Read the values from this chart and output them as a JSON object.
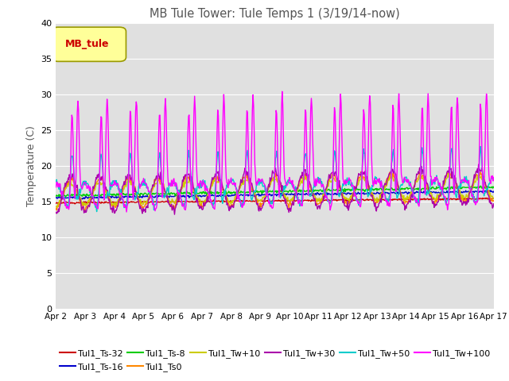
{
  "title": "MB Tule Tower: Tule Temps 1 (3/19/14-now)",
  "ylabel": "Temperature (C)",
  "ylim": [
    0,
    40
  ],
  "yticks": [
    0,
    5,
    10,
    15,
    20,
    25,
    30,
    35,
    40
  ],
  "x_tick_labels": [
    "Apr 2",
    "Apr 3",
    "Apr 4",
    "Apr 5",
    "Apr 6",
    "Apr 7",
    "Apr 8",
    "Apr 9",
    "Apr 10",
    "Apr 11",
    "Apr 12",
    "Apr 13",
    "Apr 14",
    "Apr 15",
    "Apr 16",
    "Apr 17"
  ],
  "legend_label": "MB_tule",
  "series": [
    {
      "name": "Tul1_Ts-32",
      "color": "#cc0000"
    },
    {
      "name": "Tul1_Ts-16",
      "color": "#0000cc"
    },
    {
      "name": "Tul1_Ts-8",
      "color": "#00cc00"
    },
    {
      "name": "Tul1_Ts0",
      "color": "#ff8800"
    },
    {
      "name": "Tul1_Tw+10",
      "color": "#cccc00"
    },
    {
      "name": "Tul1_Tw+30",
      "color": "#aa00aa"
    },
    {
      "name": "Tul1_Tw+50",
      "color": "#00cccc"
    },
    {
      "name": "Tul1_Tw+100",
      "color": "#ff00ff"
    }
  ],
  "plot_bg_color": "#e0e0e0",
  "fig_bg_color": "#ffffff",
  "grid_color": "#ffffff",
  "title_color": "#555555",
  "label_color": "#555555",
  "legend_box_color": "#ffff99",
  "legend_box_edge": "#999900",
  "legend_text_color": "#cc0000"
}
